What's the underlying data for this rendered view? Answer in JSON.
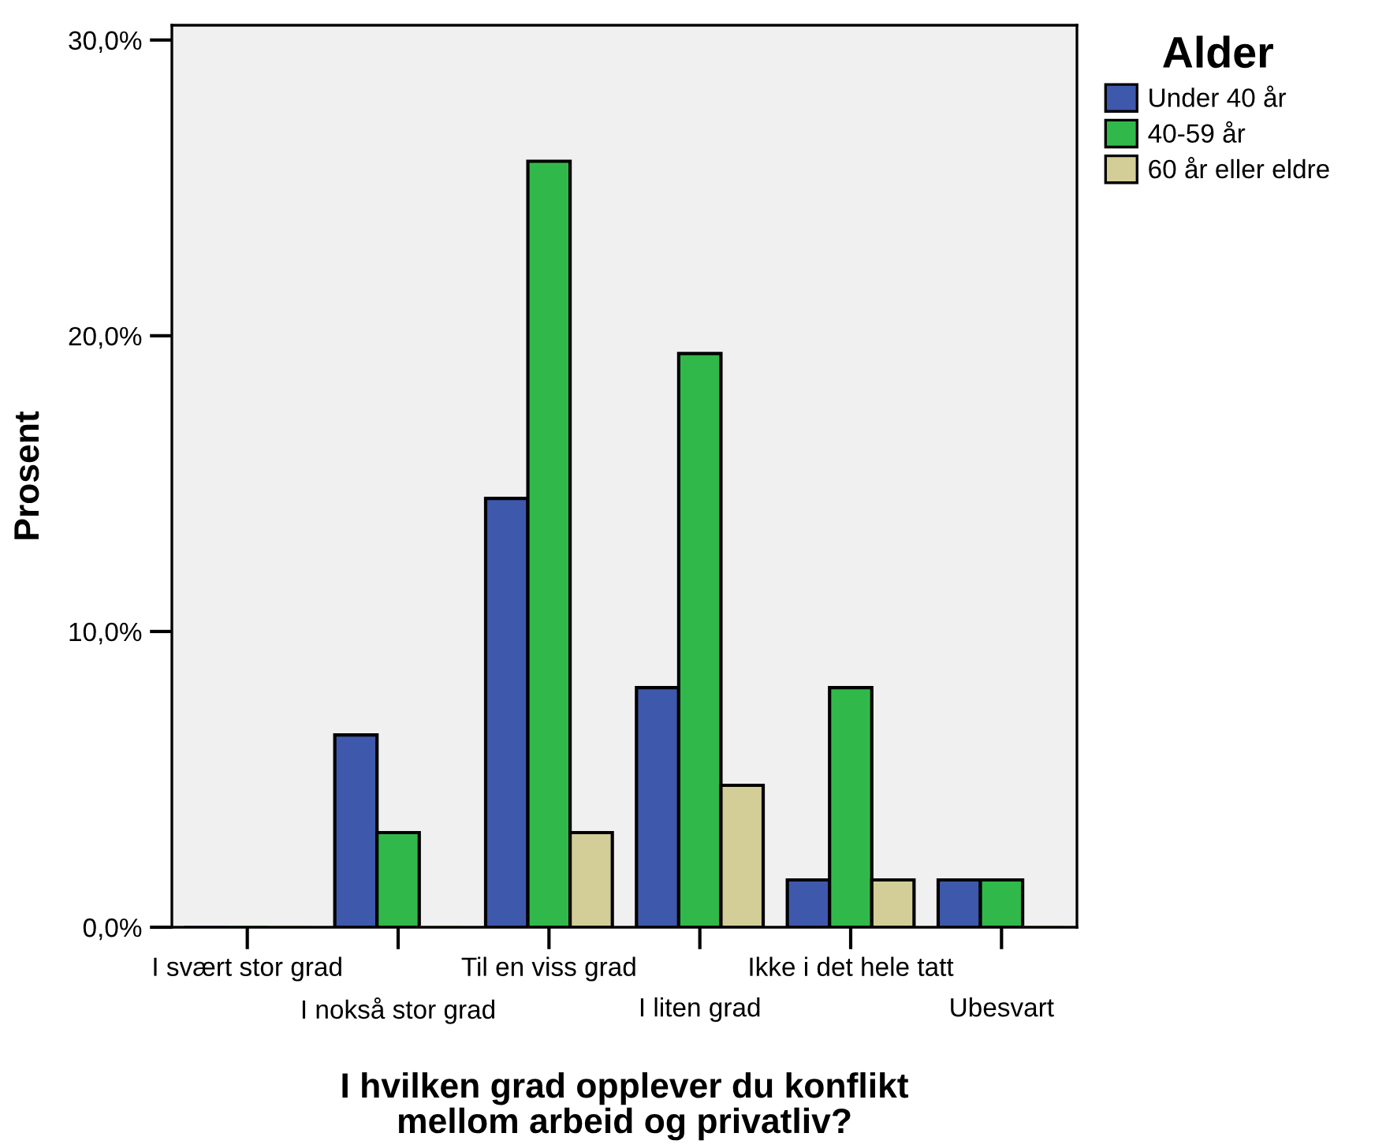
{
  "chart_data": {
    "type": "bar",
    "xlabel": "I hvilken grad opplever du konflikt\nmellom arbeid og privatliv?",
    "ylabel": "Prosent",
    "legend_title": "Alder",
    "legend": "top right",
    "categories": [
      "I svært stor grad",
      "I nokså stor grad",
      "Til en viss grad",
      "I liten grad",
      "Ikke i det hele tatt",
      "Ubesvart"
    ],
    "series": [
      {
        "name": "Under 40 år",
        "color": "#3e58ac",
        "values": [
          0,
          6.5,
          14.5,
          8.1,
          1.6,
          1.6
        ]
      },
      {
        "name": "40-59 år",
        "color": "#30b94a",
        "values": [
          0,
          3.2,
          25.9,
          19.4,
          8.1,
          1.6
        ]
      },
      {
        "name": "60 år eller eldre",
        "color": "#d3ce97",
        "values": [
          0,
          0,
          3.2,
          4.8,
          1.6,
          0
        ]
      }
    ],
    "ylim": [
      0,
      30.5
    ],
    "yticks": [
      {
        "value": 0,
        "label": "0,0%"
      },
      {
        "value": 10,
        "label": "10,0%"
      },
      {
        "value": 20,
        "label": "20,0%"
      },
      {
        "value": 30,
        "label": "30,0%"
      }
    ],
    "grid": false
  }
}
